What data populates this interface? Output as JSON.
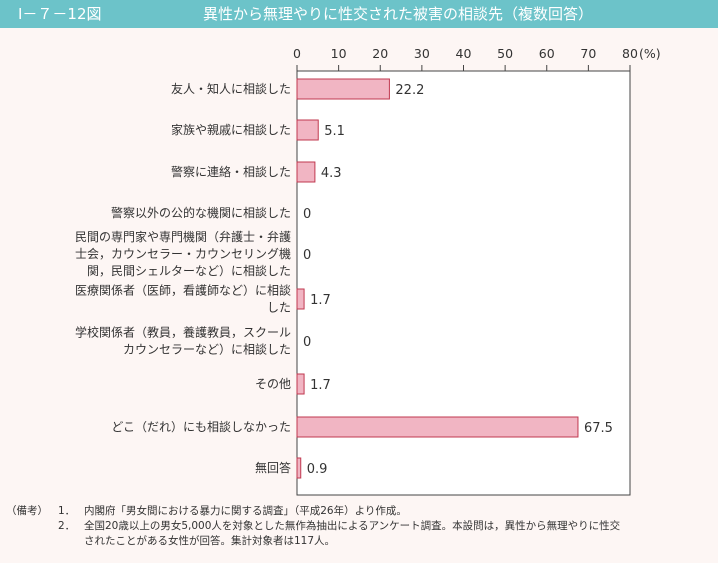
{
  "header": {
    "figure_number": "Ⅰ－７－12図",
    "title": "異性から無理やりに性交された被害の相談先（複数回答）"
  },
  "chart_data": {
    "type": "bar",
    "orientation": "horizontal",
    "unit": "(%)",
    "xlim": [
      0,
      80
    ],
    "ticks": [
      0,
      10,
      20,
      30,
      40,
      50,
      60,
      70,
      80
    ],
    "tick_position": "top",
    "grid": false,
    "bar_color": "#f1b5c3",
    "bar_edge_color": "#c0384f",
    "categories": [
      [
        "友人・知人に相談した"
      ],
      [
        "家族や親戚に相談した"
      ],
      [
        "警察に連絡・相談した"
      ],
      [
        "警察以外の公的な機関に相談した"
      ],
      [
        "民間の専門家や専門機関（弁護士・弁護",
        "士会，カウンセラー・カウンセリング機",
        "関，民間シェルターなど）に相談した"
      ],
      [
        "医療関係者（医師，看護師など）に相談",
        "した"
      ],
      [
        "学校関係者（教員，養護教員，スクール",
        "カウンセラーなど）に相談した"
      ],
      [
        "その他"
      ],
      [
        "どこ（だれ）にも相談しなかった"
      ],
      [
        "無回答"
      ]
    ],
    "values": [
      22.2,
      5.1,
      4.3,
      0,
      0,
      1.7,
      0,
      1.7,
      67.5,
      0.9
    ],
    "value_labels": [
      "22.2",
      "5.1",
      "4.3",
      "0",
      "0",
      "1.7",
      "0",
      "1.7",
      "67.5",
      "0.9"
    ]
  },
  "notes": {
    "label": "（備考）",
    "items": [
      {
        "num": "1．",
        "lines": [
          "内閣府「男女間における暴力に関する調査」（平成26年）より作成。"
        ]
      },
      {
        "num": "2．",
        "lines": [
          "全国20歳以上の男女5,000人を対象とした無作為抽出によるアンケート調査。本設問は，異性から無理やりに性交",
          "されたことがある女性が回答。集計対象者は117人。"
        ]
      }
    ]
  }
}
